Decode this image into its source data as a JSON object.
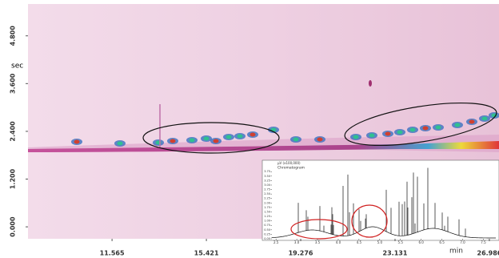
{
  "chart_data": {
    "type": "heatmap",
    "ylabel": "sec",
    "xlim": [
      8.13,
      27.38
    ],
    "xticks": [
      11.565,
      15.421,
      19.276,
      23.131,
      {
        "value": 26.986,
        "label": "26.986"
      }
    ],
    "ylim": [
      -0.3,
      5.6
    ],
    "yticks": [
      {
        "value": 0,
        "label": "0.000"
      },
      {
        "value": 1.2,
        "label": "1.200"
      },
      {
        "value": 2.4,
        "label": "2.400"
      },
      {
        "value": 3.6,
        "label": "3.600"
      },
      {
        "value": 4.8,
        "label": "4.800"
      }
    ],
    "inset": {
      "title": "Chromatogram",
      "ylabel": "µV (x100,000)",
      "xlabel": "min",
      "xlim": [
        2.4,
        7.8
      ],
      "xticks": [
        2.5,
        {
          "value": 3,
          "label": "3.0"
        },
        3.5,
        {
          "value": 4,
          "label": "4.0"
        },
        4.5,
        {
          "value": 5,
          "label": "5.0"
        },
        5.5,
        {
          "value": 6,
          "label": "6.0"
        },
        6.5,
        {
          "value": 7,
          "label": "7.0"
        },
        7.5
      ],
      "ylim": [
        0,
        3.85
      ],
      "yticks": [
        {
          "value": 0,
          "label": "0.00"
        },
        {
          "value": 0.25,
          "label": "0.25"
        },
        {
          "value": 0.5,
          "label": "0.50"
        },
        {
          "value": 0.75,
          "label": "0.75"
        },
        {
          "value": 1,
          "label": "1.00"
        },
        {
          "value": 1.25,
          "label": "1.25"
        },
        {
          "value": 1.5,
          "label": "1.50"
        },
        {
          "value": 1.75,
          "label": "1.75"
        },
        {
          "value": 2,
          "label": "2.00"
        },
        {
          "value": 2.25,
          "label": "2.25"
        },
        {
          "value": 2.5,
          "label": "2.50"
        },
        {
          "value": 2.75,
          "label": "2.75"
        },
        {
          "value": 3,
          "label": "3.00"
        },
        {
          "value": 3.25,
          "label": "3.25"
        },
        {
          "value": 3.5,
          "label": "3.50"
        },
        {
          "value": 3.75,
          "label": "3.75"
        }
      ]
    }
  }
}
